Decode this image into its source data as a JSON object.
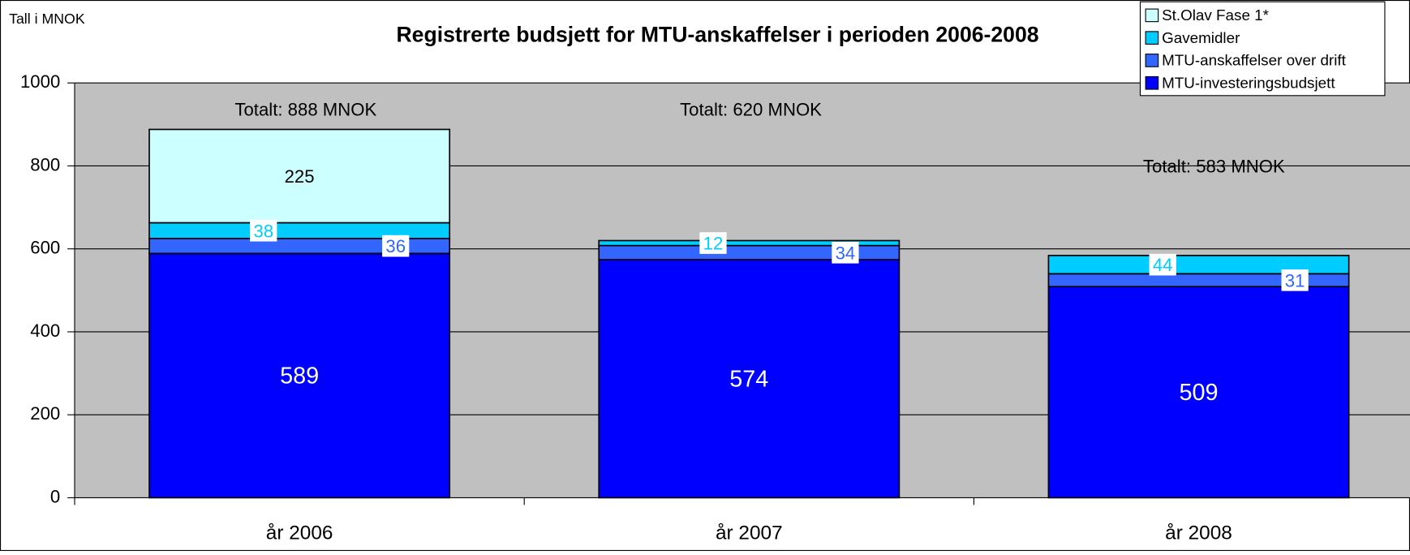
{
  "chart_data": {
    "type": "stacked_bar",
    "title": "Registrerte budsjett for MTU-anskaffelser i perioden 2006-2008",
    "unit_label": "Tall i MNOK",
    "categories": [
      "år 2006",
      "år 2007",
      "år 2008"
    ],
    "series": [
      {
        "name": "MTU-investeringsbudsjett",
        "color": "#0000ff",
        "values": [
          589,
          574,
          509
        ]
      },
      {
        "name": "MTU-anskaffelser over drift",
        "color": "#3366ff",
        "values": [
          36,
          34,
          31
        ]
      },
      {
        "name": "Gavemidler",
        "color": "#00ccff",
        "values": [
          38,
          12,
          44
        ]
      },
      {
        "name": "St.Olav Fase 1*",
        "color": "#ccffff",
        "values": [
          225,
          null,
          null
        ]
      }
    ],
    "annotations": [
      "Totalt: 888 MNOK",
      "Totalt: 620 MNOK",
      "Totalt: 583 MNOK"
    ],
    "ylim": [
      0,
      1000
    ],
    "yticks": [
      0,
      200,
      400,
      600,
      800,
      1000
    ],
    "grid": true,
    "legend": "upper right"
  }
}
